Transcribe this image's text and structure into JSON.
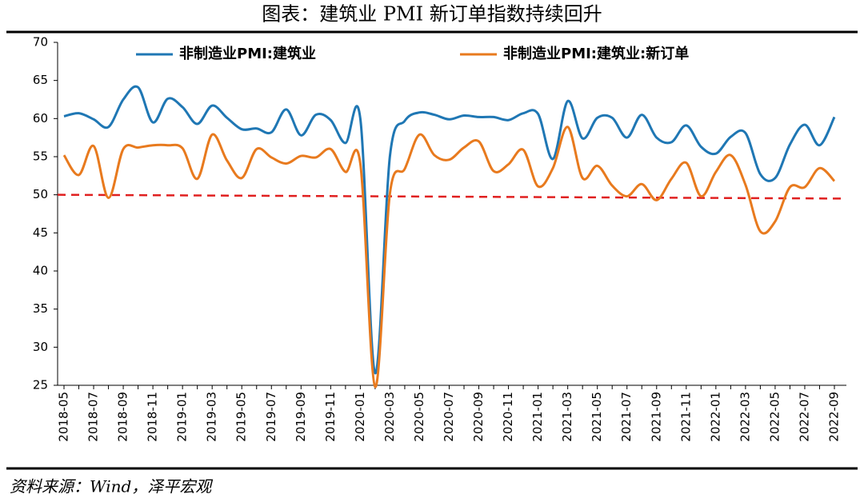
{
  "chart_data": {
    "type": "line",
    "title": "图表：建筑业 PMI 新订单指数持续回升",
    "source": "资料来源：Wind，泽平宏观",
    "categories": [
      "2018-05",
      null,
      "2018-07",
      null,
      "2018-09",
      null,
      "2018-11",
      null,
      "2019-01",
      null,
      "2019-03",
      null,
      "2019-05",
      null,
      "2019-07",
      null,
      "2019-09",
      null,
      "2019-11",
      null,
      "2020-01",
      null,
      "2020-03",
      null,
      "2020-05",
      null,
      "2020-07",
      null,
      "2020-09",
      null,
      "2020-11",
      null,
      "2021-01",
      null,
      "2021-03",
      null,
      "2021-05",
      null,
      "2021-07",
      null,
      "2021-09",
      null,
      "2021-11",
      null,
      "2022-01",
      null,
      "2022-03",
      null,
      "2022-05",
      null,
      "2022-07",
      null,
      "2022-09"
    ],
    "series": [
      {
        "name": "非制造业PMI:建筑业",
        "color": "#1f77b4",
        "values": [
          60.3,
          60.7,
          59.9,
          58.9,
          62.5,
          64.1,
          59.5,
          62.6,
          61.5,
          59.3,
          61.7,
          60.1,
          58.6,
          58.7,
          58.2,
          61.2,
          57.8,
          60.5,
          59.8,
          56.8,
          60.0,
          26.6,
          55.1,
          59.7,
          60.8,
          60.5,
          59.9,
          60.4,
          60.2,
          60.2,
          59.8,
          60.7,
          60.6,
          54.7,
          62.3,
          57.4,
          60.1,
          60.1,
          57.5,
          60.5,
          57.5,
          56.9,
          59.1,
          56.3,
          55.4,
          57.6,
          58.1,
          52.7,
          52.2,
          56.6,
          59.2,
          56.5,
          60.2
        ]
      },
      {
        "name": "非制造业PMI:建筑业:新订单",
        "color": "#e87a1e",
        "values": [
          55.2,
          52.6,
          56.4,
          49.6,
          56.0,
          56.2,
          56.5,
          56.5,
          56.1,
          52.1,
          57.9,
          54.5,
          52.2,
          56.0,
          54.9,
          54.1,
          55.1,
          54.9,
          56.0,
          53.0,
          54.1,
          24.8,
          50.2,
          53.4,
          57.9,
          55.2,
          54.6,
          56.2,
          57.0,
          53.1,
          54.0,
          55.9,
          51.1,
          53.5,
          58.9,
          52.2,
          53.8,
          51.2,
          49.8,
          51.4,
          49.3,
          52.1,
          54.2,
          49.8,
          53.0,
          55.2,
          51.3,
          45.2,
          46.5,
          51.0,
          51.0,
          53.5,
          51.8
        ]
      }
    ],
    "reference_line": {
      "values": [
        50,
        49.5
      ],
      "color": "#e02020",
      "dashed": true
    },
    "ylim": [
      25,
      70
    ],
    "yticks": [
      25,
      30,
      35,
      40,
      45,
      50,
      55,
      60,
      65,
      70
    ],
    "legend": "top",
    "smooth": true
  }
}
